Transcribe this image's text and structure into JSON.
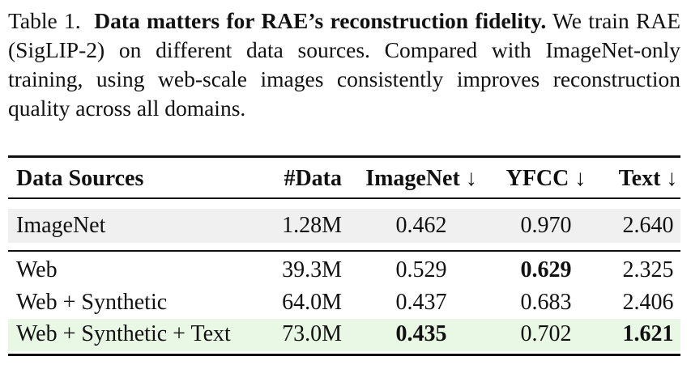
{
  "caption": {
    "label": "Table 1.",
    "title": "Data matters for RAE’s reconstruction fidelity.",
    "text": "We train RAE (SigLIP-2) on different data sources. Compared with ImageNet-only training, using web-scale images consistently improves reconstruction quality across all domains."
  },
  "table": {
    "header": [
      "Data Sources",
      "#Data",
      "ImageNet ↓",
      "YFCC ↓",
      "Text ↓"
    ],
    "rows": [
      [
        "ImageNet",
        "1.28M",
        "0.462",
        "0.970",
        "2.640"
      ],
      [
        "Web",
        "39.3M",
        "0.529",
        "0.629",
        "2.325"
      ],
      [
        "Web + Synthetic",
        "64.0M",
        "0.437",
        "0.683",
        "2.406"
      ],
      [
        "Web + Synthetic + Text",
        "73.0M",
        "0.435",
        "0.702",
        "1.621"
      ]
    ]
  }
}
